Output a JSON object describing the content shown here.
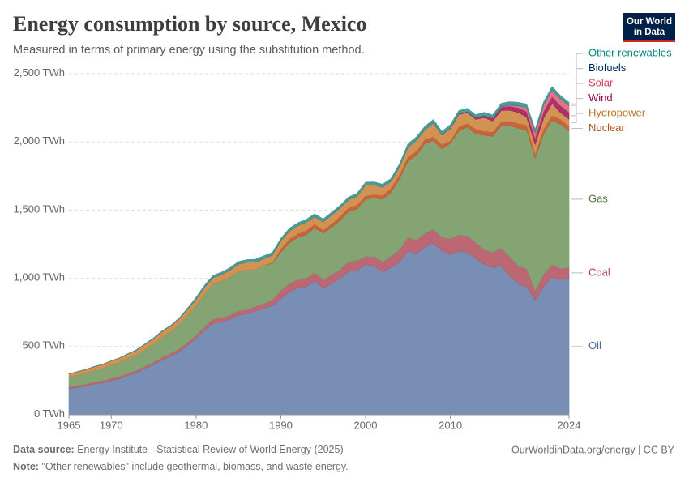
{
  "chart_data": {
    "type": "stacked_area",
    "title": "Energy consumption by source, Mexico",
    "subtitle": "Measured in terms of primary energy using the substitution method.",
    "logo": [
      "Our World",
      "in Data"
    ],
    "source_label": "Data source:",
    "source": "Energy Institute - Statistical Review of World Energy (2025)",
    "license": "OurWorldinData.org/energy | CC BY",
    "note_label": "Note:",
    "note": "\"Other renewables\" include geothermal, biomass, and waste energy.",
    "xlim": [
      1965,
      2024
    ],
    "xticks": [
      1965,
      1970,
      1980,
      1990,
      2000,
      2010,
      2024
    ],
    "ylim": [
      0,
      2500
    ],
    "yticks": [
      {
        "value": 0,
        "label": "0 TWh"
      },
      {
        "value": 500,
        "label": "500 TWh"
      },
      {
        "value": 1000,
        "label": "1,000 TWh"
      },
      {
        "value": 1500,
        "label": "1,500 TWh"
      },
      {
        "value": 2000,
        "label": "2,000 TWh"
      },
      {
        "value": 2500,
        "label": "2,500 TWh"
      }
    ],
    "grid": true,
    "x": [
      1965,
      1966,
      1967,
      1968,
      1969,
      1970,
      1971,
      1972,
      1973,
      1974,
      1975,
      1976,
      1977,
      1978,
      1979,
      1980,
      1981,
      1982,
      1983,
      1984,
      1985,
      1986,
      1987,
      1988,
      1989,
      1990,
      1991,
      1992,
      1993,
      1994,
      1995,
      1996,
      1997,
      1998,
      1999,
      2000,
      2001,
      2002,
      2003,
      2004,
      2005,
      2006,
      2007,
      2008,
      2009,
      2010,
      2011,
      2012,
      2013,
      2014,
      2015,
      2016,
      2017,
      2018,
      2019,
      2020,
      2021,
      2022,
      2023,
      2024
    ],
    "series": [
      {
        "name": "Oil",
        "color": "#6d84ae",
        "label_color": "#4c6a9c",
        "values": [
          190,
          200,
          210,
          225,
          235,
          250,
          265,
          290,
          310,
          340,
          370,
          400,
          430,
          460,
          510,
          560,
          620,
          670,
          680,
          700,
          730,
          740,
          760,
          780,
          800,
          850,
          900,
          930,
          940,
          980,
          930,
          960,
          1000,
          1050,
          1060,
          1100,
          1090,
          1050,
          1080,
          1120,
          1200,
          1180,
          1230,
          1260,
          1200,
          1180,
          1200,
          1190,
          1150,
          1100,
          1080,
          1090,
          1020,
          960,
          940,
          840,
          940,
          1010,
          990,
          1000
        ]
      },
      {
        "name": "Coal",
        "color": "#b55a68",
        "label_color": "#b13d4f",
        "values": [
          15,
          15,
          15,
          15,
          15,
          15,
          15,
          15,
          15,
          15,
          15,
          20,
          20,
          20,
          20,
          20,
          25,
          30,
          30,
          30,
          30,
          30,
          35,
          35,
          40,
          60,
          60,
          60,
          60,
          60,
          60,
          65,
          65,
          70,
          70,
          60,
          70,
          70,
          80,
          90,
          100,
          100,
          100,
          100,
          100,
          110,
          120,
          120,
          110,
          110,
          110,
          130,
          140,
          130,
          130,
          70,
          90,
          90,
          80,
          80
        ]
      },
      {
        "name": "Gas",
        "color": "#7b9c68",
        "label_color": "#4c7a3d",
        "values": [
          70,
          75,
          80,
          85,
          90,
          100,
          105,
          110,
          115,
          125,
          135,
          150,
          160,
          180,
          200,
          220,
          240,
          260,
          270,
          280,
          290,
          290,
          270,
          280,
          270,
          280,
          300,
          310,
          320,
          330,
          340,
          350,
          360,
          370,
          380,
          420,
          430,
          460,
          470,
          520,
          560,
          620,
          660,
          650,
          650,
          700,
          760,
          800,
          800,
          840,
          850,
          900,
          960,
          1010,
          1020,
          970,
          1030,
          1060,
          1060,
          1000
        ]
      },
      {
        "name": "Nuclear",
        "color": "#c4552c",
        "label_color": "#b1511c",
        "values": [
          0,
          0,
          0,
          0,
          0,
          0,
          0,
          0,
          0,
          0,
          0,
          0,
          0,
          0,
          0,
          0,
          0,
          0,
          0,
          0,
          0,
          0,
          0,
          0,
          5,
          25,
          28,
          27,
          30,
          28,
          25,
          25,
          30,
          27,
          28,
          25,
          25,
          28,
          30,
          28,
          32,
          32,
          30,
          28,
          30,
          18,
          30,
          25,
          35,
          28,
          33,
          30,
          32,
          35,
          33,
          32,
          34,
          32,
          35,
          37
        ]
      },
      {
        "name": "Hydropower",
        "color": "#cc8a45",
        "label_color": "#b8752a",
        "values": [
          25,
          26,
          27,
          28,
          30,
          30,
          32,
          33,
          35,
          38,
          40,
          42,
          40,
          42,
          44,
          45,
          50,
          45,
          48,
          50,
          55,
          58,
          55,
          50,
          55,
          60,
          58,
          60,
          62,
          55,
          60,
          65,
          60,
          60,
          65,
          80,
          70,
          60,
          50,
          60,
          70,
          80,
          70,
          100,
          70,
          90,
          90,
          80,
          70,
          100,
          80,
          80,
          80,
          80,
          60,
          70,
          80,
          90,
          50,
          50
        ]
      },
      {
        "name": "Wind",
        "color": "#a3205e",
        "label_color": "#970046",
        "values": [
          0,
          0,
          0,
          0,
          0,
          0,
          0,
          0,
          0,
          0,
          0,
          0,
          0,
          0,
          0,
          0,
          0,
          0,
          0,
          0,
          0,
          0,
          0,
          0,
          0,
          0,
          0,
          0,
          0,
          0,
          0,
          0,
          0,
          0,
          0,
          0,
          0,
          0,
          0,
          0,
          0,
          0,
          0,
          1,
          2,
          3,
          4,
          6,
          10,
          15,
          20,
          25,
          30,
          35,
          40,
          45,
          50,
          50,
          50,
          50
        ]
      },
      {
        "name": "Solar",
        "color": "#e0687e",
        "label_color": "#d73c50",
        "values": [
          0,
          0,
          0,
          0,
          0,
          0,
          0,
          0,
          0,
          0,
          0,
          0,
          0,
          0,
          0,
          0,
          0,
          0,
          0,
          0,
          0,
          0,
          0,
          0,
          0,
          0,
          0,
          0,
          0,
          0,
          0,
          0,
          0,
          0,
          0,
          0,
          0,
          0,
          0,
          0,
          0,
          0,
          0,
          0,
          0,
          0,
          0,
          0,
          0,
          0,
          1,
          3,
          8,
          15,
          30,
          40,
          45,
          50,
          50,
          50
        ]
      },
      {
        "name": "Biofuels",
        "color": "#1f3f6e",
        "label_color": "#00295b",
        "values": [
          0,
          0,
          0,
          0,
          0,
          0,
          0,
          0,
          0,
          0,
          0,
          0,
          0,
          0,
          0,
          0,
          0,
          0,
          0,
          0,
          0,
          0,
          0,
          0,
          0,
          0,
          0,
          0,
          0,
          0,
          0,
          0,
          0,
          0,
          0,
          0,
          0,
          0,
          0,
          0,
          0,
          0,
          0,
          0,
          0,
          1,
          1,
          1,
          1,
          1,
          1,
          1,
          1,
          1,
          1,
          1,
          1,
          1,
          1,
          1
        ]
      },
      {
        "name": "Other renewables",
        "color": "#3a9590",
        "label_color": "#00847e",
        "values": [
          0,
          0,
          0,
          0,
          0,
          0,
          0,
          0,
          3,
          3,
          4,
          4,
          5,
          6,
          8,
          15,
          15,
          16,
          17,
          18,
          18,
          19,
          20,
          20,
          20,
          18,
          20,
          20,
          20,
          20,
          20,
          20,
          20,
          20,
          20,
          20,
          22,
          22,
          22,
          22,
          25,
          25,
          25,
          25,
          25,
          25,
          25,
          24,
          23,
          23,
          23,
          24,
          24,
          24,
          24,
          24,
          24,
          23,
          23,
          22
        ]
      }
    ]
  }
}
